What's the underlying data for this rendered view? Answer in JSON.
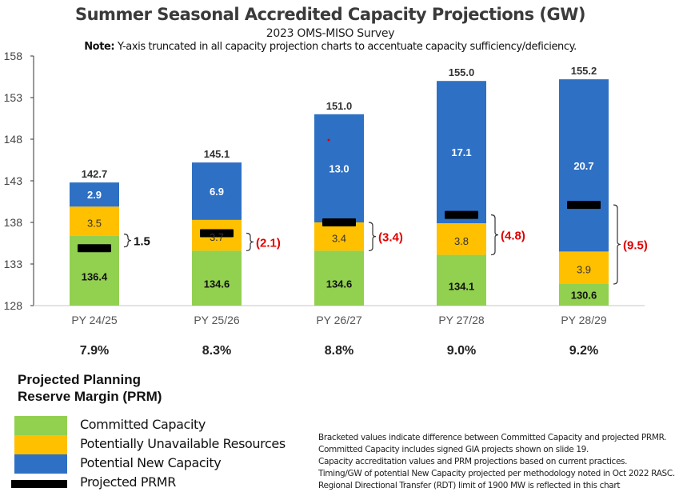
{
  "chart_data": {
    "type": "bar",
    "stacked": true,
    "title": "Summer Seasonal Accredited Capacity Projections (GW)",
    "subtitle": "2023 OMS-MISO Survey",
    "note_bold": "Note:",
    "note_text": " Y-axis truncated in all capacity projection charts to accentuate capacity sufficiency/deficiency.",
    "xlabel": "",
    "ylabel": "",
    "ylim": [
      128,
      158
    ],
    "yticks": [
      128,
      133,
      138,
      143,
      148,
      153,
      158
    ],
    "grid": false,
    "categories": [
      "PY 24/25",
      "PY 25/26",
      "PY 26/27",
      "PY 27/28",
      "PY 28/29"
    ],
    "series": [
      {
        "name": "Committed Capacity",
        "color": "#92D050",
        "values": [
          136.4,
          134.6,
          134.6,
          134.1,
          130.6
        ],
        "labels": [
          "136.4",
          "134.6",
          "134.6",
          "134.1",
          "130.6"
        ],
        "label_color": "#111111"
      },
      {
        "name": "Potentially Unavailable Resources",
        "color": "#FFC000",
        "values": [
          3.5,
          3.7,
          3.4,
          3.8,
          3.9
        ],
        "labels": [
          "3.5",
          "3.7",
          "3.4",
          "3.8",
          "3.9"
        ],
        "label_color": "#333333"
      },
      {
        "name": "Potential New Capacity",
        "color": "#2E70C4",
        "values": [
          2.9,
          6.9,
          13.0,
          17.1,
          20.7
        ],
        "labels": [
          "2.9",
          "6.9",
          "13.0",
          "17.1",
          "20.7"
        ],
        "label_color": "#ffffff"
      }
    ],
    "totals": [
      "142.7",
      "145.1",
      "151.0",
      "155.0",
      "155.2"
    ],
    "prmr": {
      "name": "Projected PRMR",
      "color": "#000000",
      "values": [
        134.9,
        136.7,
        138.0,
        138.9,
        140.1
      ]
    },
    "differences": [
      {
        "label": "1.5",
        "color": "#111111"
      },
      {
        "label": "(2.1)",
        "color": "#E00000"
      },
      {
        "label": "(3.4)",
        "color": "#E00000"
      },
      {
        "label": "(4.8)",
        "color": "#E00000"
      },
      {
        "label": "(9.5)",
        "color": "#E00000"
      }
    ],
    "prm_percent": [
      "7.9%",
      "8.3%",
      "8.8%",
      "9.0%",
      "9.2%"
    ],
    "legend_placement": "bottom-left"
  },
  "legend": {
    "title_line1": "Projected Planning",
    "title_line2": "Reserve Margin (PRM)",
    "items": [
      {
        "label": "Committed Capacity",
        "color": "#92D050"
      },
      {
        "label": "Potentially Unavailable Resources",
        "color": "#FFC000"
      },
      {
        "label": "Potential New Capacity",
        "color": "#2E70C4"
      },
      {
        "label": "Projected PRMR",
        "color": "#000000"
      }
    ]
  },
  "footnotes": [
    "Bracketed values indicate difference between Committed Capacity and projected PRMR.",
    "Committed Capacity includes signed GIA projects shown on slide 19.",
    "Capacity accreditation values and PRM projections based on current practices.",
    "Timing/GW of potential New Capacity projected per methodology noted in Oct 2022 RASC.",
    "Regional Directional Transfer (RDT) limit of 1900 MW is reflected in this chart"
  ]
}
